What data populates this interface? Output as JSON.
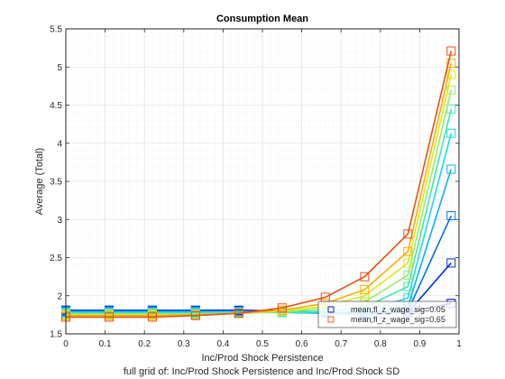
{
  "chart_data": {
    "type": "line",
    "title": "Consumption Mean",
    "xlabel": "Inc/Prod Shock Persistence",
    "ylabel": "Average (Total)",
    "caption": "full grid of: Inc/Prod Shock Persistence and Inc/Prod Shock SD",
    "xlim": [
      0,
      1
    ],
    "ylim": [
      1.5,
      5.5
    ],
    "xticks": [
      0,
      0.1,
      0.2,
      0.3,
      0.4,
      0.5,
      0.6,
      0.7,
      0.8,
      0.9,
      1
    ],
    "yticks": [
      1.5,
      2,
      2.5,
      3,
      3.5,
      4,
      4.5,
      5,
      5.5
    ],
    "x": [
      0,
      0.11,
      0.22,
      0.33,
      0.44,
      0.55,
      0.66,
      0.76,
      0.87,
      0.98
    ],
    "grid": true,
    "legend_position": "bottom-right",
    "legend": [
      "mean,fl_z_wage_sig=0.05",
      "mean,fl_z_wage_sig=0.65"
    ],
    "series": [
      {
        "name": "mean,fl_z_wage_sig=0.05",
        "color": "#0000cc",
        "values": [
          1.81,
          1.81,
          1.81,
          1.81,
          1.81,
          1.8,
          1.79,
          1.78,
          1.78,
          1.9
        ]
      },
      {
        "color": "#0030dd",
        "values": [
          1.81,
          1.81,
          1.81,
          1.81,
          1.8,
          1.79,
          1.78,
          1.77,
          1.78,
          2.43
        ]
      },
      {
        "color": "#0070ee",
        "values": [
          1.8,
          1.8,
          1.8,
          1.8,
          1.8,
          1.79,
          1.77,
          1.76,
          1.8,
          3.05
        ]
      },
      {
        "color": "#10b0f0",
        "values": [
          1.79,
          1.79,
          1.79,
          1.79,
          1.79,
          1.78,
          1.77,
          1.77,
          1.86,
          3.66
        ]
      },
      {
        "color": "#20d8e8",
        "values": [
          1.78,
          1.78,
          1.78,
          1.78,
          1.79,
          1.78,
          1.78,
          1.8,
          1.97,
          4.13
        ]
      },
      {
        "color": "#40e8b0",
        "values": [
          1.77,
          1.77,
          1.77,
          1.77,
          1.78,
          1.78,
          1.8,
          1.85,
          2.12,
          4.45
        ]
      },
      {
        "color": "#90f070",
        "values": [
          1.76,
          1.76,
          1.76,
          1.76,
          1.77,
          1.79,
          1.83,
          1.92,
          2.27,
          4.7
        ]
      },
      {
        "color": "#d8e820",
        "values": [
          1.75,
          1.75,
          1.75,
          1.75,
          1.77,
          1.8,
          1.86,
          2.0,
          2.43,
          4.9
        ]
      },
      {
        "color": "#f8b000",
        "values": [
          1.74,
          1.74,
          1.74,
          1.75,
          1.77,
          1.81,
          1.9,
          2.08,
          2.58,
          5.05
        ]
      },
      {
        "name": "mean,fl_z_wage_sig=0.65",
        "color": "#e85010",
        "values": [
          1.72,
          1.72,
          1.72,
          1.74,
          1.77,
          1.84,
          1.98,
          2.25,
          2.81,
          5.21
        ]
      }
    ]
  }
}
